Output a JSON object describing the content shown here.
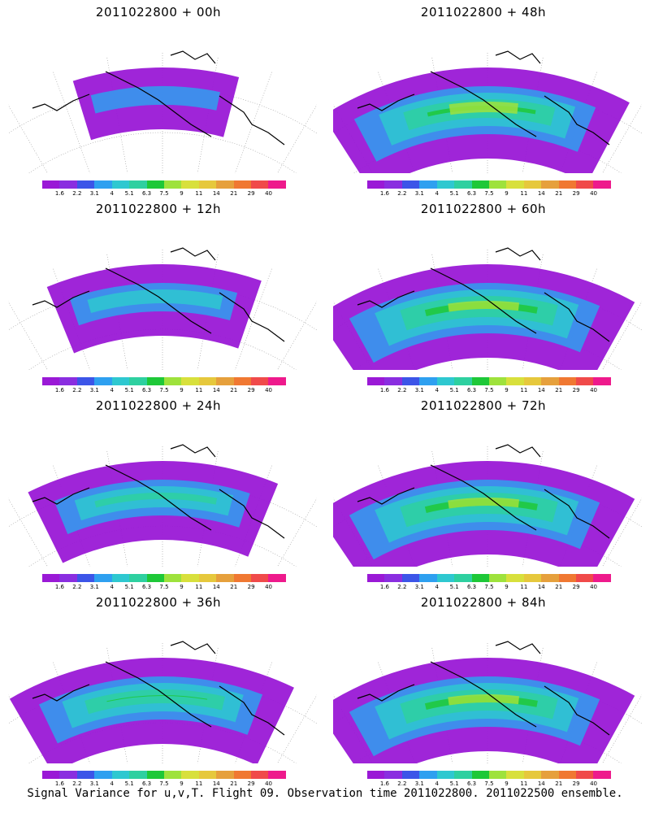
{
  "caption": "Signal Variance for u,v,T. Flight 09. Observation time 2011022800. 2011022500 ensemble.",
  "colorbar": {
    "labels": [
      "1.6",
      "2.2",
      "3.1",
      "4",
      "5.1",
      "6.3",
      "7.5",
      "9",
      "11",
      "14",
      "21",
      "29",
      "40"
    ],
    "colors": [
      "#9a19d6",
      "#8a2ee0",
      "#3c55e8",
      "#2ea0f0",
      "#2ec8d0",
      "#2ed0a0",
      "#1ec838",
      "#9ee23c",
      "#d8e03c",
      "#e6c83c",
      "#e6a03c",
      "#f07832",
      "#f04a4a",
      "#ee1a8c"
    ]
  },
  "panels": [
    {
      "title": "2011022800 + 00h",
      "level": 0
    },
    {
      "title": "2011022800 + 48h",
      "level": 4
    },
    {
      "title": "2011022800 + 12h",
      "level": 1
    },
    {
      "title": "2011022800 + 60h",
      "level": 5
    },
    {
      "title": "2011022800 + 24h",
      "level": 2
    },
    {
      "title": "2011022800 + 72h",
      "level": 6
    },
    {
      "title": "2011022800 + 36h",
      "level": 3
    },
    {
      "title": "2011022800 + 84h",
      "level": 7
    }
  ]
}
